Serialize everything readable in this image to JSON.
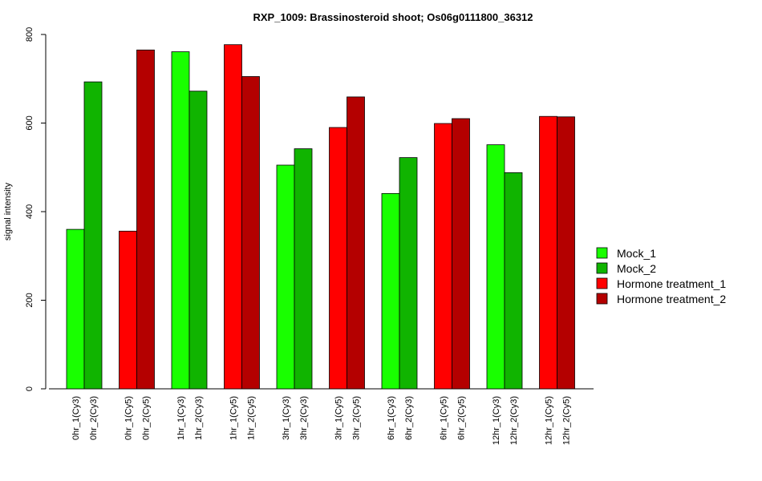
{
  "chart_data": {
    "type": "bar",
    "title": "RXP_1009: Brassinosteroid shoot; Os06g0111800_36312",
    "xlabel": "",
    "ylabel": "signal intensity",
    "ylim": [
      0,
      800
    ],
    "yticks": [
      0,
      200,
      400,
      600,
      800
    ],
    "legend_position": "right",
    "series": [
      {
        "name": "Mock_1",
        "color": "#19ff00"
      },
      {
        "name": "Mock_2",
        "color": "#10b400"
      },
      {
        "name": "Hormone treatment_1",
        "color": "#ff0000"
      },
      {
        "name": "Hormone treatment_2",
        "color": "#b40000"
      }
    ],
    "groups": [
      {
        "bars": [
          {
            "label": "0hr_1(Cy3)",
            "value": 360,
            "series": 0
          },
          {
            "label": "0hr_2(Cy3)",
            "value": 693,
            "series": 1
          }
        ]
      },
      {
        "bars": [
          {
            "label": "0hr_1(Cy5)",
            "value": 356,
            "series": 2
          },
          {
            "label": "0hr_2(Cy5)",
            "value": 765,
            "series": 3
          }
        ]
      },
      {
        "bars": [
          {
            "label": "1hr_1(Cy3)",
            "value": 761,
            "series": 0
          },
          {
            "label": "1hr_2(Cy3)",
            "value": 672,
            "series": 1
          }
        ]
      },
      {
        "bars": [
          {
            "label": "1hr_1(Cy5)",
            "value": 777,
            "series": 2
          },
          {
            "label": "1hr_2(Cy5)",
            "value": 705,
            "series": 3
          }
        ]
      },
      {
        "bars": [
          {
            "label": "3hr_1(Cy3)",
            "value": 505,
            "series": 0
          },
          {
            "label": "3hr_2(Cy3)",
            "value": 542,
            "series": 1
          }
        ]
      },
      {
        "bars": [
          {
            "label": "3hr_1(Cy5)",
            "value": 590,
            "series": 2
          },
          {
            "label": "3hr_2(Cy5)",
            "value": 659,
            "series": 3
          }
        ]
      },
      {
        "bars": [
          {
            "label": "6hr_1(Cy3)",
            "value": 441,
            "series": 0
          },
          {
            "label": "6hr_2(Cy3)",
            "value": 522,
            "series": 1
          }
        ]
      },
      {
        "bars": [
          {
            "label": "6hr_1(Cy5)",
            "value": 599,
            "series": 2
          },
          {
            "label": "6hr_2(Cy5)",
            "value": 610,
            "series": 3
          }
        ]
      },
      {
        "bars": [
          {
            "label": "12hr_1(Cy3)",
            "value": 551,
            "series": 0
          },
          {
            "label": "12hr_2(Cy3)",
            "value": 488,
            "series": 1
          }
        ]
      },
      {
        "bars": [
          {
            "label": "12hr_1(Cy5)",
            "value": 615,
            "series": 2
          },
          {
            "label": "12hr_2(Cy5)",
            "value": 614,
            "series": 3
          }
        ]
      }
    ]
  }
}
